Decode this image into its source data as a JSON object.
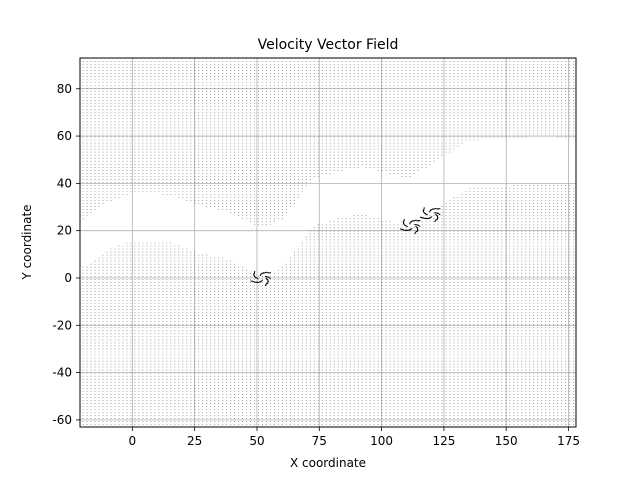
{
  "chart_data": {
    "type": "quiver",
    "title": "Velocity Vector Field",
    "xlabel": "X coordinate",
    "ylabel": "Y coordinate",
    "xlim": [
      -21,
      178
    ],
    "ylim": [
      -63,
      93
    ],
    "xticks": [
      0,
      25,
      50,
      75,
      100,
      125,
      150,
      175
    ],
    "yticks": [
      -60,
      -40,
      -20,
      0,
      20,
      40,
      60,
      80
    ],
    "grid": true,
    "vector_color": "#000000",
    "grid_color": "#b0b0b0",
    "empty_regions": [
      {
        "description_points": [
          [
            -19,
            5
          ],
          [
            -10,
            12
          ],
          [
            0,
            16
          ],
          [
            15,
            15
          ],
          [
            25,
            11
          ],
          [
            38,
            8
          ],
          [
            47,
            3
          ],
          [
            53,
            1
          ],
          [
            60,
            5
          ],
          [
            67,
            14
          ],
          [
            72,
            22
          ],
          [
            82,
            25
          ],
          [
            92,
            27
          ],
          [
            103,
            24
          ],
          [
            110,
            22
          ],
          [
            118,
            27
          ],
          [
            127,
            33
          ],
          [
            135,
            38
          ],
          [
            150,
            39
          ],
          [
            165,
            40
          ],
          [
            177,
            39
          ]
        ]
      }
    ],
    "turbulent_spots": [
      {
        "x": 52,
        "y": 0
      },
      {
        "x": 112,
        "y": 22
      },
      {
        "x": 120,
        "y": 27
      }
    ]
  }
}
